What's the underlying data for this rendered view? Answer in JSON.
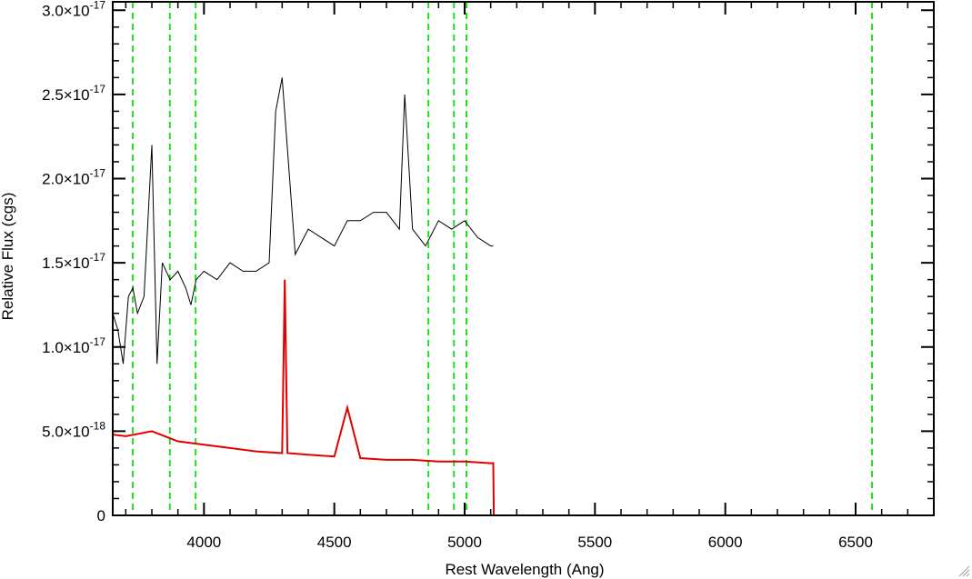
{
  "chart_data": {
    "type": "line",
    "xlabel": "Rest Wavelength (Ang)",
    "ylabel": "Relative Flux (cgs)",
    "xlim": [
      3650,
      6800
    ],
    "ylim": [
      0,
      3.05e-17
    ],
    "x_ticks": [
      4000,
      4500,
      5000,
      5500,
      6000,
      6500
    ],
    "x_tick_labels": [
      "4000",
      "4500",
      "5000",
      "5500",
      "6000",
      "6500"
    ],
    "y_ticks": [
      {
        "value": 0,
        "mantissa": "0",
        "exponent": ""
      },
      {
        "value": 5e-18,
        "mantissa": "5.0×10",
        "exponent": "-18"
      },
      {
        "value": 1e-17,
        "mantissa": "1.0×10",
        "exponent": "-17"
      },
      {
        "value": 1.5e-17,
        "mantissa": "1.5×10",
        "exponent": "-17"
      },
      {
        "value": 2e-17,
        "mantissa": "2.0×10",
        "exponent": "-17"
      },
      {
        "value": 2.5e-17,
        "mantissa": "2.5×10",
        "exponent": "-17"
      },
      {
        "value": 3e-17,
        "mantissa": "3.0×10",
        "exponent": "-17"
      }
    ],
    "line_markers": [
      3727,
      3869,
      3968,
      4861,
      4959,
      5007,
      6563
    ],
    "series": [
      {
        "color": "#000000",
        "x": [
          3650,
          3670,
          3690,
          3710,
          3727,
          3745,
          3770,
          3800,
          3820,
          3840,
          3870,
          3900,
          3930,
          3950,
          3970,
          4000,
          4050,
          4100,
          4150,
          4200,
          4250,
          4275,
          4300,
          4350,
          4400,
          4450,
          4500,
          4550,
          4600,
          4650,
          4700,
          4750,
          4770,
          4800,
          4850,
          4900,
          4950,
          5000,
          5050,
          5100,
          5110
        ],
        "y": [
          1.2e-17,
          1.1e-17,
          9e-18,
          1.3e-17,
          1.35e-17,
          1.2e-17,
          1.3e-17,
          2.2e-17,
          9e-18,
          1.5e-17,
          1.4e-17,
          1.45e-17,
          1.35e-17,
          1.25e-17,
          1.4e-17,
          1.45e-17,
          1.4e-17,
          1.5e-17,
          1.45e-17,
          1.45e-17,
          1.5e-17,
          2.4e-17,
          2.6e-17,
          1.55e-17,
          1.7e-17,
          1.65e-17,
          1.6e-17,
          1.75e-17,
          1.75e-17,
          1.8e-17,
          1.8e-17,
          1.7e-17,
          2.5e-17,
          1.7e-17,
          1.6e-17,
          1.75e-17,
          1.7e-17,
          1.75e-17,
          1.65e-17,
          1.6e-17,
          1.6e-17
        ]
      },
      {
        "color": "#e00000",
        "x": [
          3650,
          3700,
          3750,
          3800,
          3850,
          3900,
          4000,
          4100,
          4200,
          4300,
          4310,
          4320,
          4400,
          4500,
          4550,
          4600,
          4700,
          4800,
          4900,
          5000,
          5100,
          5110,
          5112,
          6800
        ],
        "y": [
          4.8e-18,
          4.7e-18,
          4.85e-18,
          5e-18,
          4.7e-18,
          4.4e-18,
          4.2e-18,
          4e-18,
          3.8e-18,
          3.7e-18,
          1.4e-17,
          3.7e-18,
          3.6e-18,
          3.5e-18,
          6.4e-18,
          3.4e-18,
          3.3e-18,
          3.3e-18,
          3.2e-18,
          3.2e-18,
          3.1e-18,
          3.1e-18,
          0,
          0
        ]
      }
    ]
  }
}
